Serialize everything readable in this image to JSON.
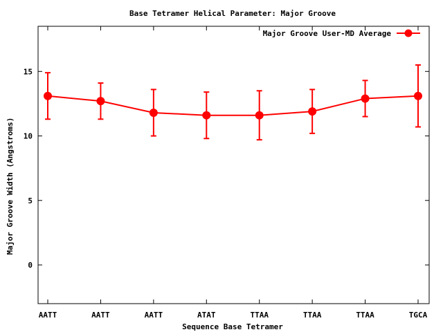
{
  "chart_data": {
    "type": "line",
    "title": "Base Tetramer Helical Parameter: Major Groove",
    "xlabel": "Sequence Base Tetramer",
    "ylabel": "Major Groove Width (Angstroms)",
    "categories": [
      "AATT",
      "AATT",
      "AATT",
      "ATAT",
      "TTAA",
      "TTAA",
      "TTAA",
      "TGCA"
    ],
    "series": [
      {
        "name": "Major Groove User-MD Average",
        "color": "#ff0000",
        "values": [
          13.1,
          12.7,
          11.8,
          11.6,
          11.6,
          11.9,
          12.9,
          13.1
        ],
        "error_low": [
          11.3,
          11.3,
          10.0,
          9.8,
          9.7,
          10.2,
          11.5,
          10.7
        ],
        "error_high": [
          14.9,
          14.1,
          13.6,
          13.4,
          13.5,
          13.6,
          14.3,
          15.5
        ]
      }
    ],
    "ylim": [
      -3,
      18.5
    ],
    "yticks": [
      0,
      5,
      10,
      15
    ],
    "grid": false,
    "legend": "top-right"
  }
}
